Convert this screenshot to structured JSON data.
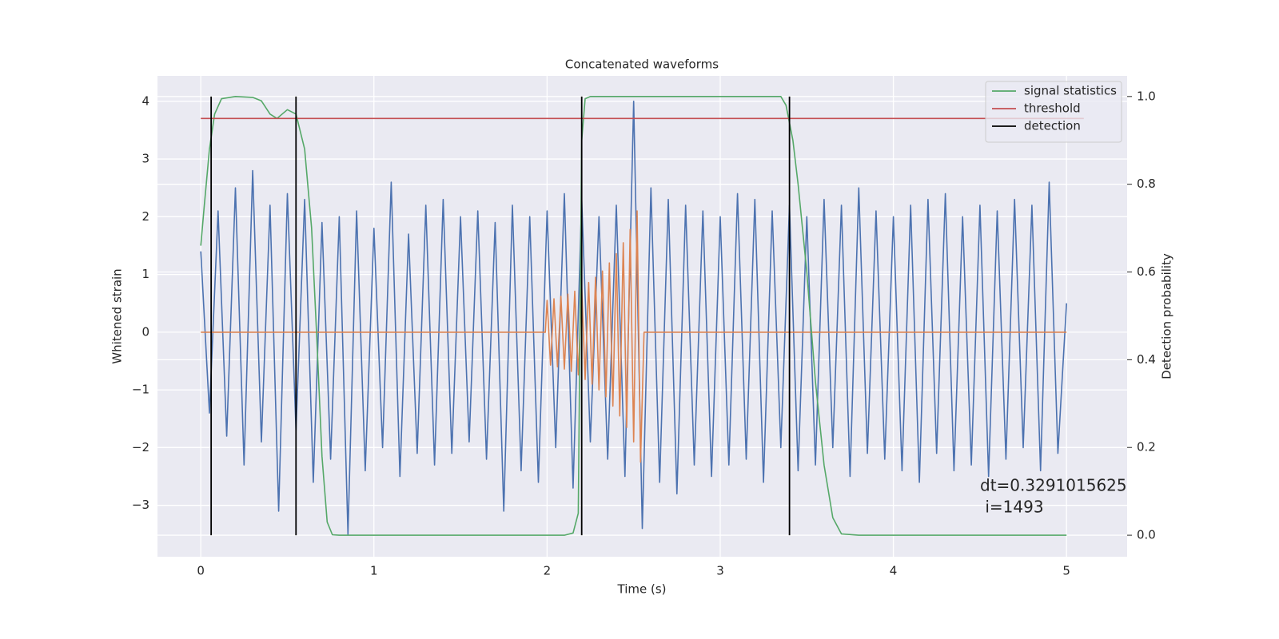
{
  "chart_data": {
    "type": "line",
    "title": "Concatenated waveforms",
    "xlabel": "Time (s)",
    "ylabel": "Whitened strain",
    "y2label": "Detection probability",
    "xlim": [
      -0.25,
      5.35
    ],
    "ylim": [
      -3.89,
      4.44
    ],
    "y2lim": [
      -0.049,
      1.047
    ],
    "xticks": [
      0,
      1,
      2,
      3,
      4,
      5
    ],
    "yticks": [
      {
        "value": -3,
        "label": "−3"
      },
      {
        "value": -2,
        "label": "−2"
      },
      {
        "value": -1,
        "label": "−1"
      },
      0,
      1,
      2,
      3,
      4
    ],
    "y2ticks": [
      {
        "value": 0,
        "label": "0.0"
      },
      0.2,
      0.4,
      0.6,
      0.8,
      {
        "value": 1,
        "label": "1.0"
      }
    ],
    "grid": true,
    "legend": "upper right",
    "series": [
      {
        "color": "#4c72b0",
        "axis": "y",
        "x": [
          0,
          0.05,
          0.1,
          0.15,
          0.2,
          0.25,
          0.3,
          0.35,
          0.4,
          0.45,
          0.5,
          0.55,
          0.6,
          0.65,
          0.7,
          0.75,
          0.8,
          0.85,
          0.9,
          0.95,
          1,
          1.05,
          1.1,
          1.15,
          1.2,
          1.25,
          1.3,
          1.35,
          1.4,
          1.45,
          1.5,
          1.55,
          1.6,
          1.65,
          1.7,
          1.75,
          1.8,
          1.85,
          1.9,
          1.95,
          2,
          2.05,
          2.1,
          2.15,
          2.2,
          2.25,
          2.3,
          2.35,
          2.4,
          2.45,
          2.5,
          2.55,
          2.6,
          2.65,
          2.7,
          2.75,
          2.8,
          2.85,
          2.9,
          2.95,
          3,
          3.05,
          3.1,
          3.15,
          3.2,
          3.25,
          3.3,
          3.35,
          3.4,
          3.45,
          3.5,
          3.55,
          3.6,
          3.65,
          3.7,
          3.75,
          3.8,
          3.85,
          3.9,
          3.95,
          4,
          4.05,
          4.1,
          4.15,
          4.2,
          4.25,
          4.3,
          4.35,
          4.4,
          4.45,
          4.5,
          4.55,
          4.6,
          4.65,
          4.7,
          4.75,
          4.8,
          4.85,
          4.9,
          4.95,
          5
        ],
        "values": [
          1.4,
          -1.4,
          2.1,
          -1.8,
          2.5,
          -2.3,
          2.8,
          -1.9,
          2.2,
          -3.1,
          2.4,
          -1.7,
          2.3,
          -2.6,
          1.9,
          -2.2,
          2.0,
          -3.5,
          2.1,
          -2.4,
          1.8,
          -2.0,
          2.6,
          -2.5,
          1.7,
          -2.1,
          2.2,
          -2.3,
          2.3,
          -2.1,
          2.0,
          -1.9,
          2.1,
          -2.2,
          1.9,
          -3.1,
          2.2,
          -2.4,
          2.0,
          -2.6,
          2.1,
          -2.0,
          2.4,
          -2.7,
          2.3,
          -1.9,
          2.0,
          -2.2,
          2.2,
          -2.5,
          4.0,
          -3.4,
          2.5,
          -2.6,
          2.3,
          -2.8,
          2.2,
          -2.3,
          2.1,
          -2.5,
          2.0,
          -2.3,
          2.4,
          -2.2,
          2.3,
          -2.6,
          2.1,
          -2.0,
          2.2,
          -2.4,
          2.0,
          -2.3,
          2.3,
          -2.0,
          2.2,
          -2.5,
          2.5,
          -2.1,
          2.1,
          -2.2,
          2.0,
          -2.4,
          2.2,
          -2.6,
          2.3,
          -2.1,
          2.4,
          -2.4,
          2.0,
          -2.3,
          2.2,
          -2.5,
          2.1,
          -2.2,
          2.3,
          -2.0,
          2.2,
          -2.4,
          2.6,
          -2.1,
          0.5
        ]
      },
      {
        "color": "#dd8452",
        "axis": "y",
        "x": [
          0,
          1.99,
          2.0,
          2.02,
          2.04,
          2.06,
          2.08,
          2.1,
          2.12,
          2.14,
          2.16,
          2.18,
          2.2,
          2.22,
          2.24,
          2.26,
          2.28,
          2.3,
          2.32,
          2.34,
          2.36,
          2.38,
          2.4,
          2.42,
          2.44,
          2.46,
          2.48,
          2.5,
          2.52,
          2.54,
          2.56,
          5
        ],
        "values": [
          0,
          0,
          0.55,
          -0.57,
          0.58,
          -0.6,
          0.62,
          -0.64,
          0.66,
          -0.68,
          0.71,
          -0.74,
          0.78,
          -0.82,
          0.86,
          -0.9,
          0.95,
          -1.0,
          1.06,
          -1.12,
          1.2,
          -1.28,
          1.36,
          -1.45,
          1.55,
          -1.65,
          1.78,
          -1.9,
          2.1,
          -2.25,
          0,
          0
        ]
      },
      {
        "name": "signal statistics",
        "color": "#55a868",
        "axis": "y2",
        "x": [
          0,
          0.02,
          0.05,
          0.08,
          0.12,
          0.2,
          0.3,
          0.35,
          0.4,
          0.44,
          0.5,
          0.55,
          0.6,
          0.64,
          0.67,
          0.7,
          0.73,
          0.76,
          0.8,
          2.1,
          2.15,
          2.18,
          2.2,
          2.22,
          2.25,
          3.35,
          3.38,
          3.42,
          3.45,
          3.5,
          3.55,
          3.6,
          3.65,
          3.7,
          3.8,
          5
        ],
        "values": [
          0.66,
          0.75,
          0.88,
          0.96,
          0.995,
          1.0,
          0.998,
          0.99,
          0.96,
          0.95,
          0.97,
          0.96,
          0.88,
          0.7,
          0.45,
          0.18,
          0.03,
          0.001,
          0,
          0,
          0.005,
          0.05,
          0.9,
          0.995,
          1.0,
          1.0,
          0.98,
          0.9,
          0.8,
          0.6,
          0.35,
          0.16,
          0.04,
          0.003,
          0,
          0
        ]
      },
      {
        "name": "threshold",
        "color": "#c44e52",
        "axis": "y2",
        "x": [
          0,
          5.1
        ],
        "values": [
          0.95,
          0.95
        ]
      }
    ],
    "detection": {
      "name": "detection",
      "color": "#000000",
      "axis": "y2",
      "x": [
        0.06,
        0.55,
        2.2,
        3.4
      ],
      "ymin": 0,
      "ymax": 1
    },
    "annotation": [
      "dt=0.3291015625",
      " i=1493"
    ]
  }
}
